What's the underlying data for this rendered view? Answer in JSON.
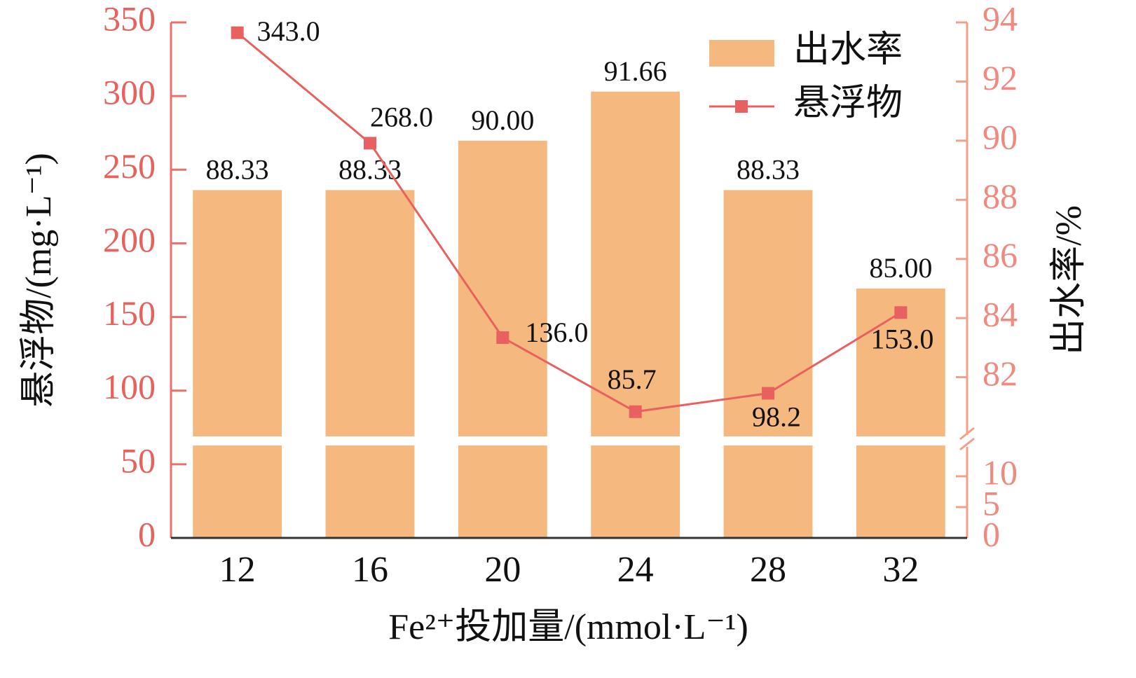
{
  "chart_data": {
    "type": "bar_line",
    "x_label": "Fe²⁺投加量/(mmol·L⁻¹)",
    "y_label": "悬浮物/(mg·L⁻¹)",
    "y2_label": "出水率/%",
    "categories": [
      12,
      16,
      20,
      24,
      28,
      32
    ],
    "series": [
      {
        "name": "出水率",
        "type": "bar",
        "axis": "y2",
        "color": "#f5b97f",
        "values": [
          88.33,
          88.33,
          90.0,
          91.66,
          88.33,
          85.0
        ],
        "value_labels": [
          "88.33",
          "88.33",
          "90.00",
          "91.66",
          "88.33",
          "85.00"
        ]
      },
      {
        "name": "悬浮物",
        "type": "line",
        "axis": "y",
        "color": "#e8605f",
        "values": [
          343.0,
          268.0,
          136.0,
          85.7,
          98.2,
          153.0
        ],
        "value_labels": [
          "343.0",
          "268.0",
          "136.0",
          "85.7",
          "98.2",
          "153.0"
        ]
      }
    ],
    "ylim": [
      0,
      350
    ],
    "yticks": [
      0,
      50,
      100,
      150,
      200,
      250,
      300,
      350
    ],
    "y2lim": [
      0,
      94
    ],
    "y2_break": [
      15,
      80
    ],
    "y2ticks": [
      0,
      5,
      10,
      82,
      84,
      86,
      88,
      90,
      92,
      94
    ],
    "legend": "upper right"
  }
}
